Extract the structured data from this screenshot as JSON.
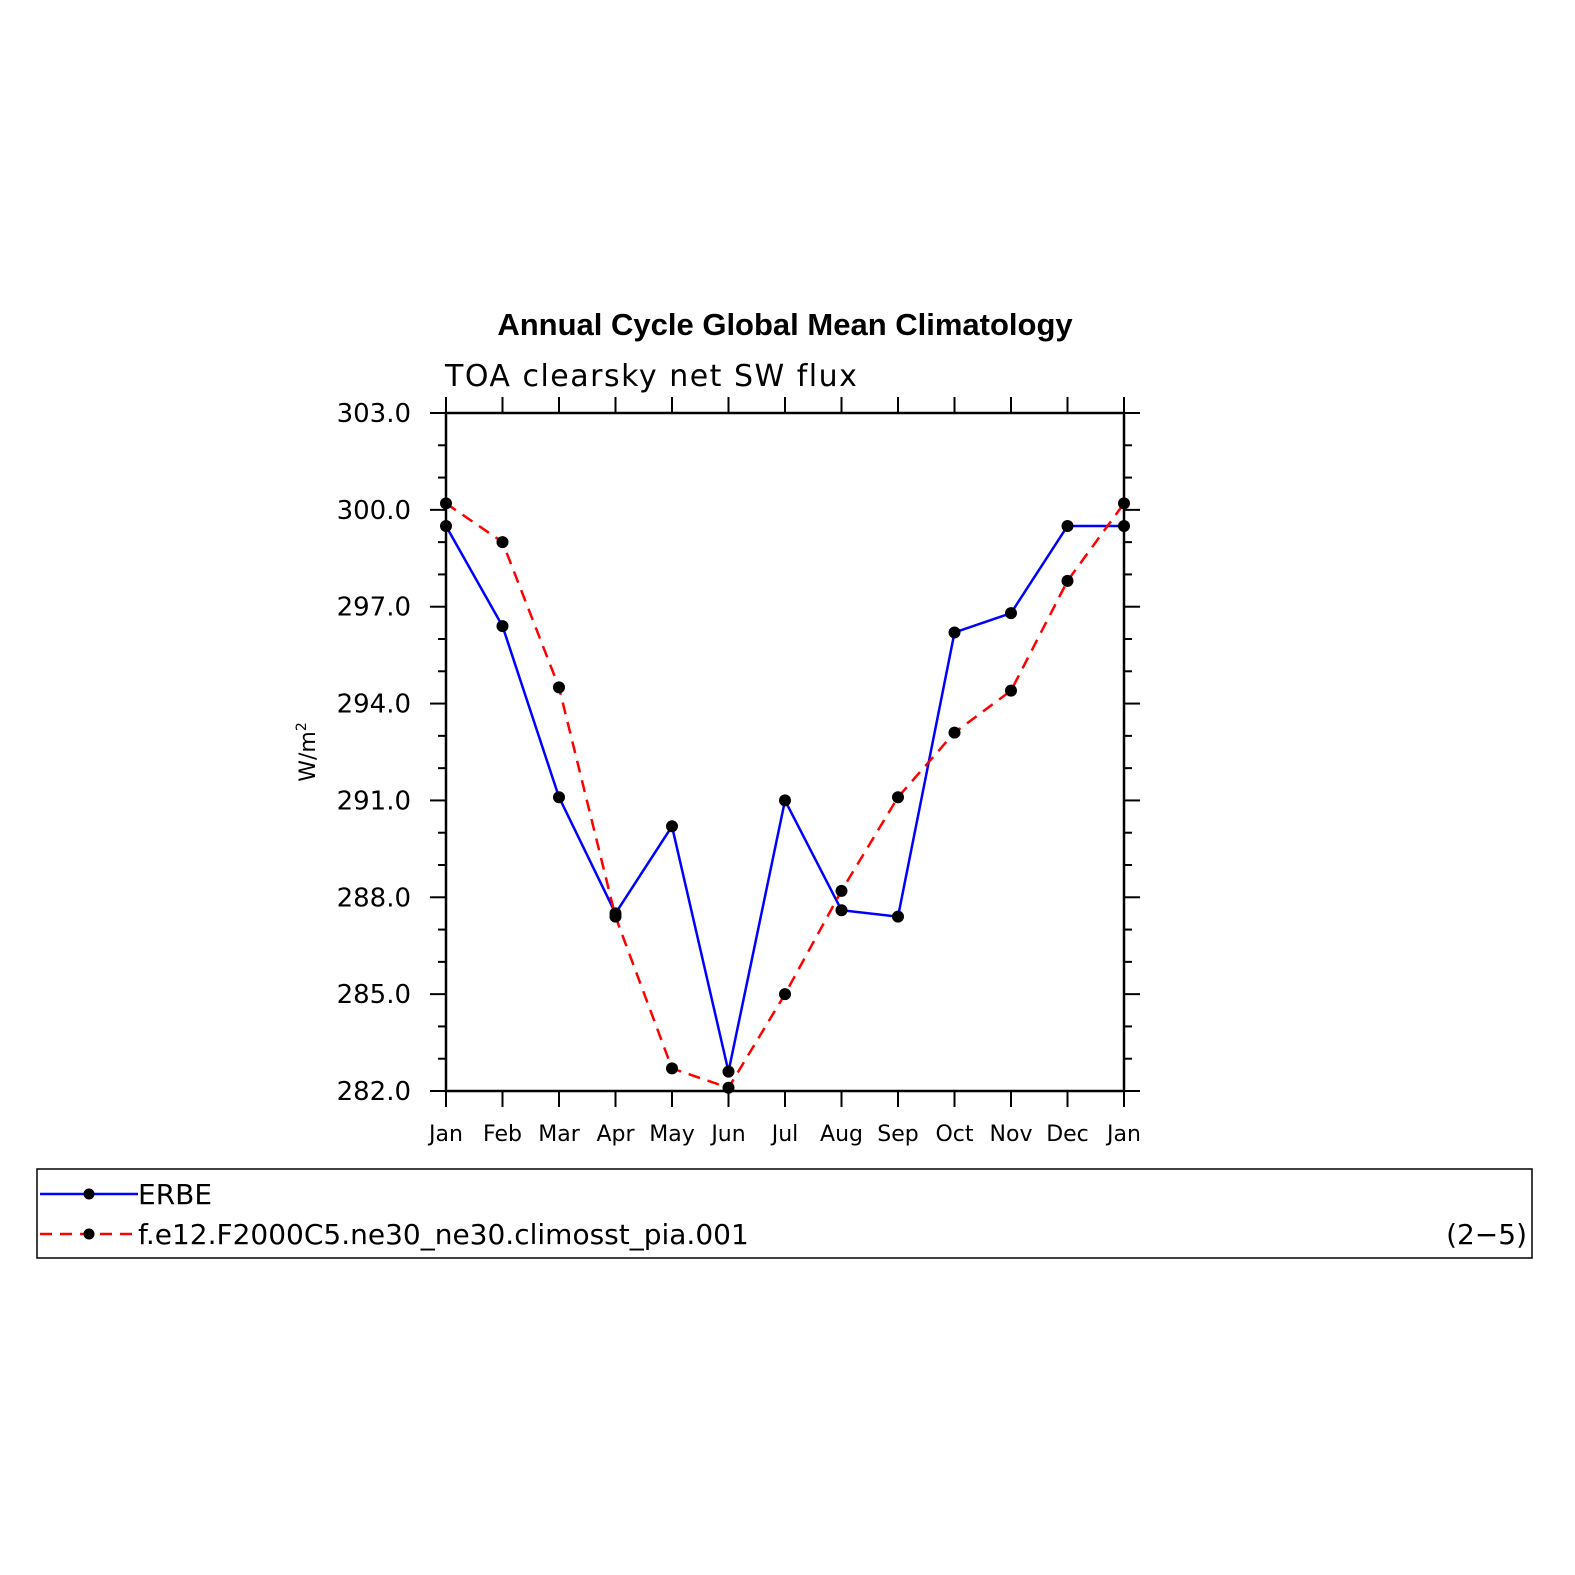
{
  "chart_data": {
    "type": "line",
    "title": "Annual Cycle Global Mean Climatology",
    "subtitle": "TOA clearsky net SW flux",
    "ylabel": "W/m",
    "ylabel_sup": "2",
    "ylim": [
      282.0,
      303.0
    ],
    "yticks": [
      "282.0",
      "285.0",
      "288.0",
      "291.0",
      "294.0",
      "297.0",
      "300.0",
      "303.0"
    ],
    "categories": [
      "Jan",
      "Feb",
      "Mar",
      "Apr",
      "May",
      "Jun",
      "Jul",
      "Aug",
      "Sep",
      "Oct",
      "Nov",
      "Dec",
      "Jan"
    ],
    "series": [
      {
        "name": "ERBE",
        "color": "#0000ff",
        "dash": "solid",
        "values": [
          299.5,
          296.4,
          291.1,
          287.5,
          290.2,
          282.6,
          291.0,
          287.6,
          287.4,
          296.2,
          296.8,
          299.5,
          299.5
        ]
      },
      {
        "name": "f.e12.F2000C5.ne30_ne30.climosst_pia.001",
        "color": "#ff0000",
        "dash": "dashed",
        "values": [
          300.2,
          299.0,
          294.5,
          287.4,
          282.7,
          282.1,
          285.0,
          288.2,
          291.1,
          293.1,
          294.4,
          297.8,
          300.2
        ]
      }
    ],
    "legend_position": "bottom",
    "panel_label": "(2−5)"
  }
}
